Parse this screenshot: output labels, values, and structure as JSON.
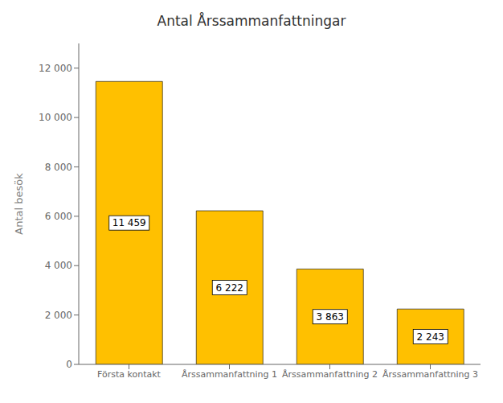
{
  "chart_data": {
    "type": "bar",
    "title": "Antal Årssammanfattningar",
    "ylabel": "Antal besök",
    "categories": [
      "Första kontakt",
      "Årssammanfattning 1",
      "Årssammanfattning 2",
      "Årssammanfattning 3"
    ],
    "values": [
      11459,
      6222,
      3863,
      2243
    ],
    "value_labels": [
      "11 459",
      "6 222",
      "3 863",
      "2 243"
    ],
    "data_labels": true,
    "color": "#FFC000",
    "ylim": [
      0,
      13000
    ],
    "yticks": [
      0,
      {
        "value": 2000,
        "label": "2 000"
      },
      {
        "value": 4000,
        "label": "4 000"
      },
      {
        "value": 6000,
        "label": "6 000"
      },
      {
        "value": 8000,
        "label": "8 000"
      },
      {
        "value": 10000,
        "label": "10 000"
      },
      {
        "value": 12000,
        "label": "12 000"
      }
    ],
    "grid": false
  }
}
